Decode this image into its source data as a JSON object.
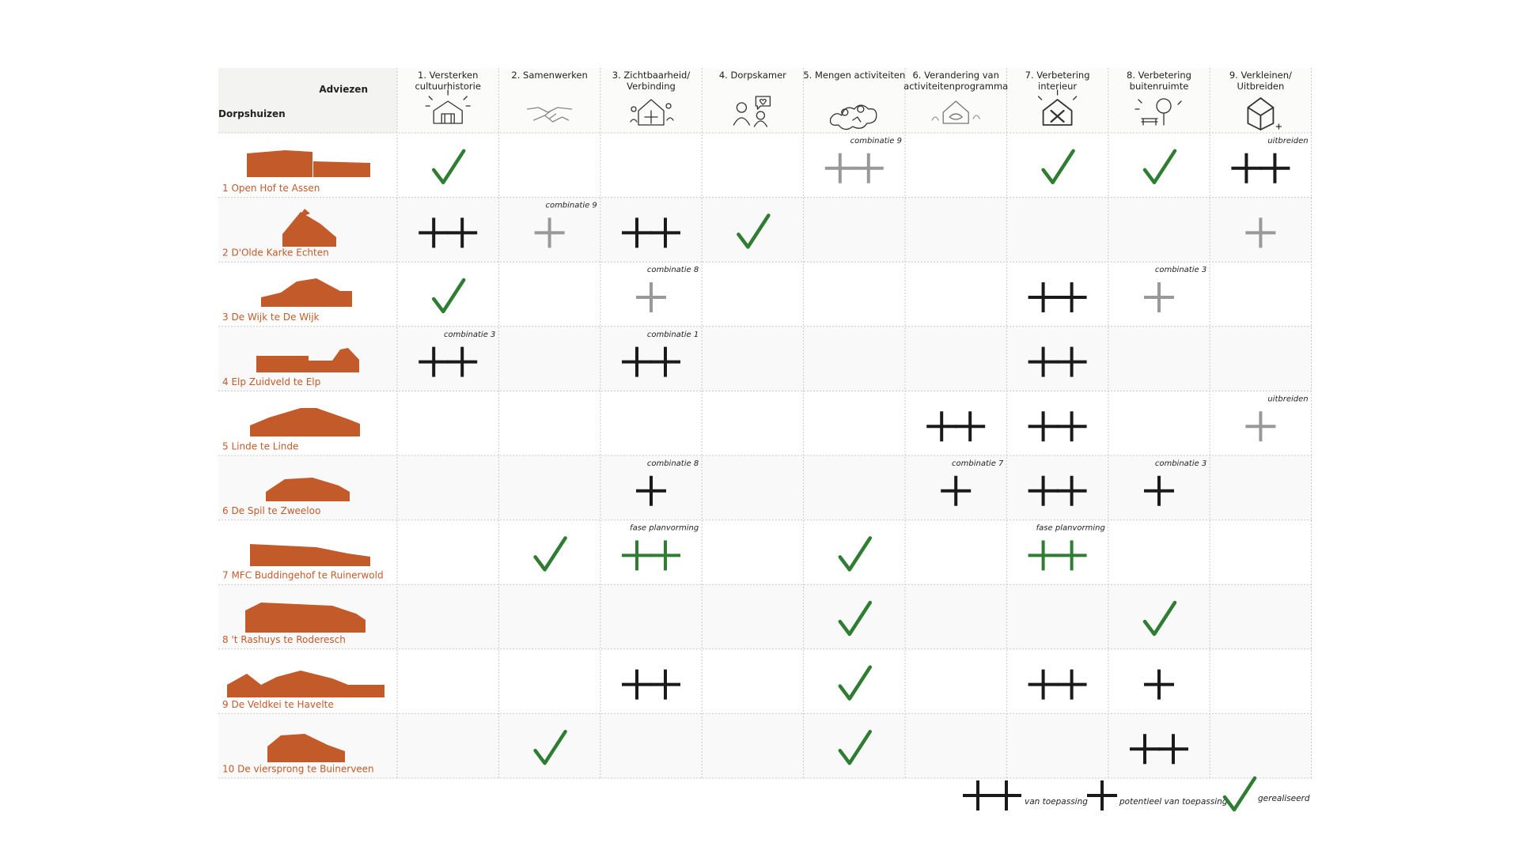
{
  "header": {
    "corner_top": "Adviezen",
    "corner_left": "Dorpshuizen",
    "columns": [
      {
        "label": [
          "1. Versterken",
          "cultuurhistorie"
        ],
        "icon": "house-heritage-icon"
      },
      {
        "label": [
          "2. Samenwerken"
        ],
        "icon": "handshake-icon"
      },
      {
        "label": [
          "3. Zichtbaarheid/",
          "Verbinding"
        ],
        "icon": "visibility-house-icon"
      },
      {
        "label": [
          "4. Dorpskamer"
        ],
        "icon": "people-chat-icon"
      },
      {
        "label": [
          "5. Mengen activiteiten"
        ],
        "icon": "activities-mix-icon"
      },
      {
        "label": [
          "6. Verandering van",
          "activiteitenprogramma"
        ],
        "icon": "program-change-icon"
      },
      {
        "label": [
          "7. Verbetering",
          "interieur"
        ],
        "icon": "interior-tools-icon"
      },
      {
        "label": [
          "8. Verbetering",
          "buitenruimte"
        ],
        "icon": "outdoor-bench-tree-icon"
      },
      {
        "label": [
          "9. Verkleinen/",
          "Uitbreiden"
        ],
        "icon": "cube-house-icon"
      }
    ]
  },
  "rows": [
    {
      "label": "1 Open Hof te Assen",
      "cells": [
        {
          "mark": "check"
        },
        null,
        null,
        null,
        {
          "mark": "pp",
          "color": "gray",
          "note": "combinatie 9"
        },
        null,
        {
          "mark": "check"
        },
        {
          "mark": "check"
        },
        {
          "mark": "pp",
          "color": "black",
          "note": "uitbreiden"
        }
      ]
    },
    {
      "label": "2 D'Olde Karke Echten",
      "cells": [
        {
          "mark": "pp",
          "color": "black"
        },
        {
          "mark": "p",
          "color": "gray",
          "note": "combinatie 9"
        },
        {
          "mark": "pp",
          "color": "black"
        },
        {
          "mark": "check"
        },
        null,
        null,
        null,
        null,
        {
          "mark": "p",
          "color": "gray"
        }
      ]
    },
    {
      "label": "3 De Wijk te De Wijk",
      "cells": [
        {
          "mark": "check"
        },
        null,
        {
          "mark": "p",
          "color": "gray",
          "note": "combinatie 8"
        },
        null,
        null,
        null,
        {
          "mark": "pp",
          "color": "black"
        },
        {
          "mark": "p",
          "color": "gray",
          "note": "combinatie 3"
        },
        null
      ]
    },
    {
      "label": "4 Elp Zuidveld te Elp",
      "cells": [
        {
          "mark": "pp",
          "color": "black",
          "note": "combinatie 3"
        },
        null,
        {
          "mark": "pp",
          "color": "black",
          "note": "combinatie 1"
        },
        null,
        null,
        null,
        {
          "mark": "pp",
          "color": "black"
        },
        null,
        null
      ]
    },
    {
      "label": "5 Linde te Linde",
      "cells": [
        null,
        null,
        null,
        null,
        null,
        {
          "mark": "pp",
          "color": "black"
        },
        {
          "mark": "pp",
          "color": "black"
        },
        null,
        {
          "mark": "p",
          "color": "gray",
          "note": "uitbreiden"
        }
      ]
    },
    {
      "label": "6 De Spil te Zweeloo",
      "cells": [
        null,
        null,
        {
          "mark": "p",
          "color": "black",
          "note": "combinatie 8"
        },
        null,
        null,
        {
          "mark": "p",
          "color": "black",
          "note": "combinatie 7"
        },
        {
          "mark": "pp",
          "color": "black"
        },
        {
          "mark": "p",
          "color": "black",
          "note": "combinatie 3"
        },
        null
      ]
    },
    {
      "label": "7 MFC Buddingehof te Ruinerwold",
      "cells": [
        null,
        {
          "mark": "check"
        },
        {
          "mark": "pp",
          "color": "green",
          "note": "fase planvorming"
        },
        null,
        {
          "mark": "check"
        },
        null,
        {
          "mark": "pp",
          "color": "green",
          "note": "fase planvorming"
        },
        null,
        null
      ]
    },
    {
      "label": "8 't Rashuys te Roderesch",
      "cells": [
        null,
        null,
        null,
        null,
        {
          "mark": "check"
        },
        null,
        null,
        {
          "mark": "check"
        },
        null
      ]
    },
    {
      "label": "9 De Veldkei te Havelte",
      "cells": [
        null,
        null,
        {
          "mark": "pp",
          "color": "black"
        },
        null,
        {
          "mark": "check"
        },
        null,
        {
          "mark": "pp",
          "color": "black"
        },
        {
          "mark": "p",
          "color": "black"
        },
        null
      ]
    },
    {
      "label": "10 De viersprong te Buinerveen",
      "cells": [
        null,
        {
          "mark": "check"
        },
        null,
        null,
        {
          "mark": "check"
        },
        null,
        null,
        {
          "mark": "pp",
          "color": "black"
        },
        null
      ]
    }
  ],
  "legend": {
    "pp_label": "van toepassing",
    "p_label": "potentieel van toepassing",
    "check_label": "gerealiseerd"
  },
  "colors": {
    "black": "#1a1a1a",
    "gray": "#999999",
    "green": "#2e7d32",
    "brand_orange": "#c25a2a",
    "row_even": "#f9f9f9",
    "header_bg": "#f3f3f1"
  }
}
